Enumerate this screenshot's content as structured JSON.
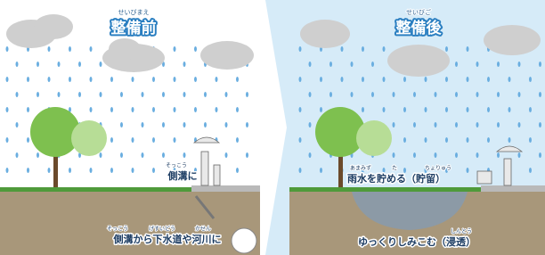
{
  "panels": [
    {
      "title_ruby": "せいびまえ",
      "title": "整備前",
      "labels": [
        {
          "text": "側溝に",
          "ruby": [
            "そっこう"
          ]
        },
        {
          "text": "側溝から下水道や河川に",
          "ruby": [
            "そっこう",
            "げすいどう",
            "かせん"
          ]
        }
      ]
    },
    {
      "title_ruby": "せいびご",
      "title": "整備後",
      "labels": [
        {
          "text": "雨水を貯める（貯留）",
          "ruby": [
            "あまみず",
            "た",
            "ちょりゅう"
          ]
        },
        {
          "text": "ゆっくりしみこむ（浸透）",
          "ruby": [
            "しんとう"
          ]
        }
      ]
    }
  ]
}
